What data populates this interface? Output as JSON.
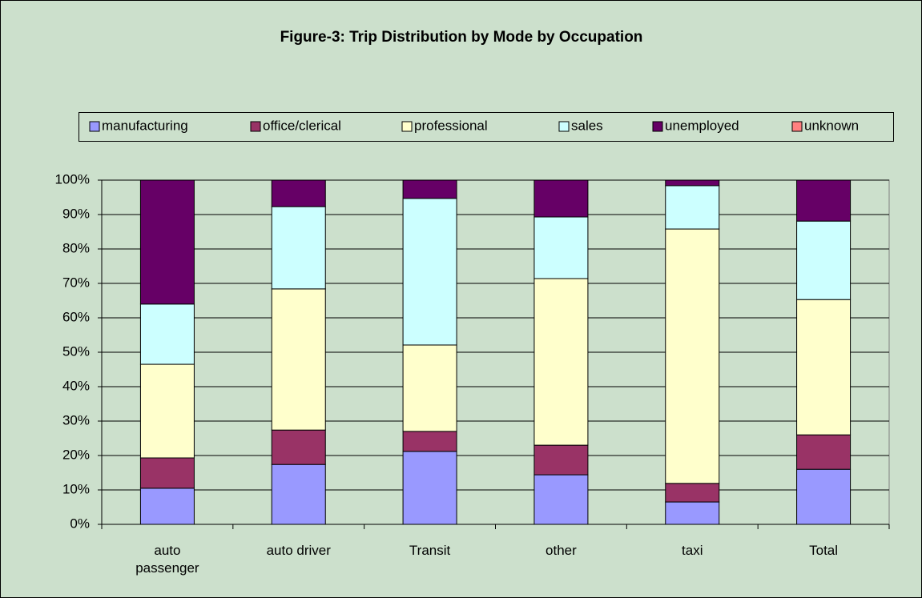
{
  "chart_data": {
    "type": "stacked_bar_100",
    "title": "Figure-3: Trip Distribution by Mode by Occupation",
    "categories": [
      "auto passenger",
      "auto driver",
      "Transit",
      "other",
      "taxi",
      "Total"
    ],
    "series": [
      {
        "name": "manufacturing",
        "color": "#9999ff",
        "values": [
          10.5,
          17.4,
          21.2,
          14.4,
          6.5,
          16
        ]
      },
      {
        "name": "office/clerical",
        "color": "#993366",
        "values": [
          8.8,
          10,
          5.8,
          8.6,
          5.4,
          10
        ]
      },
      {
        "name": "professional",
        "color": "#ffffcc",
        "values": [
          27.2,
          41,
          25.1,
          48.4,
          73.9,
          39.3
        ]
      },
      {
        "name": "sales",
        "color": "#ccffff",
        "values": [
          17.5,
          23.9,
          42.6,
          17.9,
          12.6,
          22.8
        ]
      },
      {
        "name": "unemployed",
        "color": "#660066",
        "values": [
          36,
          7.7,
          5.3,
          10.7,
          1.6,
          11.9
        ]
      },
      {
        "name": "unknown",
        "color": "#ff8080",
        "values": [
          0,
          0,
          0,
          0,
          0,
          0
        ]
      }
    ],
    "ylim": [
      0,
      100
    ],
    "yticks": [
      {
        "value": 0,
        "label": "0%"
      },
      {
        "value": 10,
        "label": "10%"
      },
      {
        "value": 20,
        "label": "20%"
      },
      {
        "value": 30,
        "label": "30%"
      },
      {
        "value": 40,
        "label": "40%"
      },
      {
        "value": 50,
        "label": "50%"
      },
      {
        "value": 60,
        "label": "60%"
      },
      {
        "value": 70,
        "label": "70%"
      },
      {
        "value": 80,
        "label": "80%"
      },
      {
        "value": 90,
        "label": "90%"
      },
      {
        "value": 100,
        "label": "100%"
      }
    ],
    "grid": true,
    "legend": "top"
  }
}
